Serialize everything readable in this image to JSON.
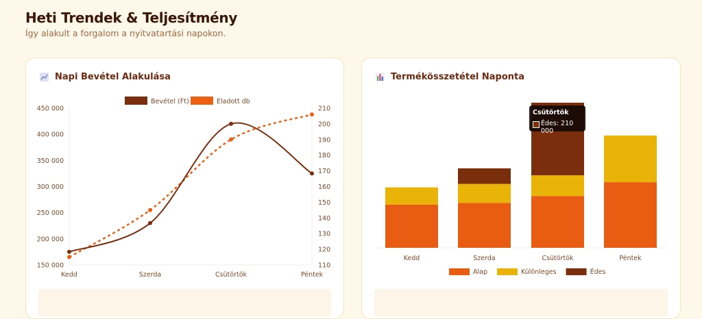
{
  "header": {
    "title": "Heti Trendek & Teljesítmény",
    "subtitle": "Így alakult a forgalom a nyitvatartási napokon."
  },
  "cards": {
    "left": {
      "title": "Napi Bevétel Alakulása",
      "icon": "line-chart-icon"
    },
    "right": {
      "title": "Termékösszetétel Naponta",
      "icon": "bar-chart-icon"
    }
  },
  "tooltip": {
    "title": "Csütörtök",
    "text": "Édes: 210 000",
    "color": "#7a2e0c"
  },
  "chart_data": [
    {
      "type": "line",
      "title": "Napi Bevétel Alakulása",
      "categories": [
        "Kedd",
        "Szerda",
        "Csütörtök",
        "Péntek"
      ],
      "series": [
        {
          "name": "Bevétel (Ft)",
          "axis": "left",
          "values": [
            175000,
            230000,
            420000,
            325000
          ],
          "color": "#7a2e0c"
        },
        {
          "name": "Eladott db",
          "axis": "right",
          "values": [
            115,
            145,
            190,
            206
          ],
          "color": "#ef5f12"
        }
      ],
      "ylim_left": [
        150000,
        450000
      ],
      "ylim_right": [
        110,
        210
      ],
      "yticks_left": [
        "150 000",
        "200 000",
        "250 000",
        "300 000",
        "350 000",
        "400 000",
        "450 000"
      ],
      "yticks_right": [
        "110",
        "120",
        "130",
        "140",
        "150",
        "160",
        "170",
        "180",
        "190",
        "200",
        "210"
      ],
      "legend": "top"
    },
    {
      "type": "bar",
      "stacked": true,
      "title": "Termékösszetétel Naponta",
      "categories": [
        "Kedd",
        "Szerda",
        "Csütörtök",
        "Péntek"
      ],
      "series": [
        {
          "name": "Alap",
          "values": [
            125000,
            130000,
            150000,
            190000
          ],
          "color": "#e85d12"
        },
        {
          "name": "Különleges",
          "values": [
            50000,
            55000,
            60000,
            135000
          ],
          "color": "#eab308"
        },
        {
          "name": "Édes",
          "values": [
            0,
            45000,
            210000,
            0
          ],
          "color": "#7a2e0c"
        }
      ],
      "legend": "bottom"
    }
  ]
}
